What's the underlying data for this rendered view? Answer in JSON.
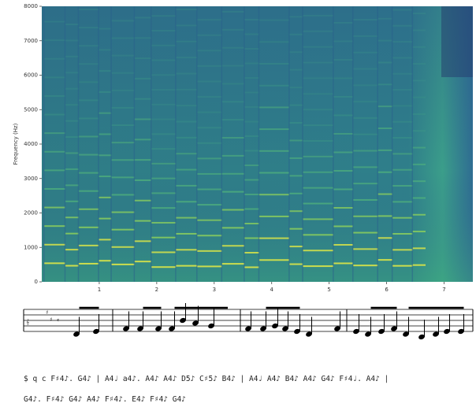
{
  "chart_data": {
    "type": "spectrogram",
    "ylabel": "Frequency (Hz)",
    "xlim": [
      0,
      7.5
    ],
    "xticks": [
      1,
      2,
      3,
      4,
      5,
      6,
      7
    ],
    "ylim": [
      0,
      8000
    ],
    "yticks": [
      0,
      1000,
      2000,
      3000,
      4000,
      5000,
      6000,
      7000,
      8000
    ]
  },
  "notation_text": [
    "$ q c F♯4♪. G4♪ | A4♩ a4♪. A4♪ A4♪ D5♪ C♯5♪ B4♪ | A4♩ A4♪ B4♪ A4♪ G4♪ F♯4♩. A4♪ |",
    "G4♪. F♯4♪ G4♪ A4♪ F♯4♪. E4♪ F♯4♪ G4♪"
  ]
}
